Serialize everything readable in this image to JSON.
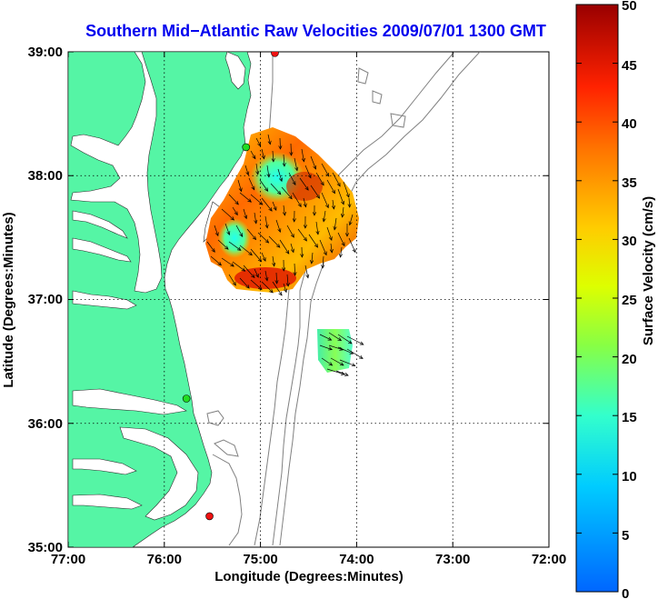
{
  "title": "Southern Mid−Atlantic Raw Velocities 2009/07/01 1300 GMT",
  "x_axis": {
    "label": "Longitude (Degrees:Minutes)",
    "ticks": [
      "77:00",
      "76:00",
      "75:00",
      "74:00",
      "73:00",
      "72:00"
    ]
  },
  "y_axis": {
    "label": "Latitude (Degrees:Minutes)",
    "ticks": [
      "39:00",
      "38:00",
      "37:00",
      "36:00",
      "35:00"
    ]
  },
  "colorbar": {
    "label": "Surface Velocity (cm/s)",
    "ticks": [
      "50",
      "45",
      "40",
      "35",
      "30",
      "25",
      "20",
      "15",
      "10",
      "5",
      "0"
    ],
    "min": 0,
    "max": 50
  },
  "colors": {
    "title": "#0000ee",
    "land": "#55f5a5",
    "bathymetry": "#808080",
    "grid": "#000000",
    "marker_green": "#22dd22",
    "marker_red": "#ee1111"
  },
  "map": {
    "lon_range": [
      -77,
      -72
    ],
    "lat_range": [
      35,
      39
    ],
    "grid": "dotted",
    "stations": [
      {
        "lon": -74.85,
        "lat": 38.99,
        "color": "red"
      },
      {
        "lon": -75.15,
        "lat": 38.23,
        "color": "green"
      },
      {
        "lon": -75.77,
        "lat": 36.2,
        "color": "green"
      },
      {
        "lon": -75.53,
        "lat": 35.25,
        "color": "red"
      }
    ]
  }
}
